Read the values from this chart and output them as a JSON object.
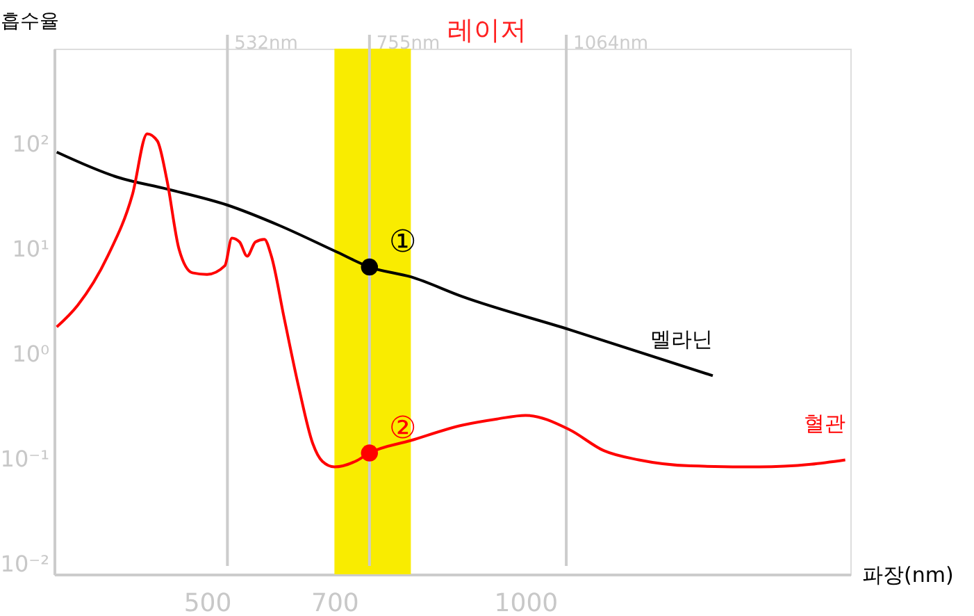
{
  "chart_data": {
    "type": "line",
    "title": "레이저",
    "xlabel": "파장(nm)",
    "ylabel": "흡수율",
    "xlim": [
      260,
      1510
    ],
    "xticks": [
      500,
      700,
      1000
    ],
    "ylim": [
      0.008,
      800
    ],
    "yticks": [
      {
        "value": 0.01,
        "label": "10⁻²"
      },
      {
        "value": 0.1,
        "label": "10⁻¹"
      },
      {
        "value": 1,
        "label": "10⁰"
      },
      {
        "value": 10,
        "label": "10¹"
      },
      {
        "value": 100,
        "label": "10²"
      }
    ],
    "log": "y",
    "grid": false,
    "legend": false,
    "series": [
      {
        "name": "멜라닌",
        "color": "#000000",
        "marker": "none",
        "x": [
          264,
          359,
          437,
          532,
          614,
          704,
          755,
          820,
          901,
          1069,
          1294
        ],
        "values": [
          83,
          48,
          37,
          26,
          16.6,
          9.3,
          6.7,
          5.4,
          3.5,
          1.7,
          0.62
        ]
      },
      {
        "name": "혈관",
        "color": "#ff0000",
        "marker": "none",
        "x": [
          264,
          297,
          344,
          383,
          406,
          422,
          437,
          456,
          477,
          500,
          528,
          539,
          551,
          563,
          576,
          590,
          601,
          621,
          644,
          666,
          681,
          700,
          733,
          755,
          820,
          901,
          955,
          1000,
          1069,
          1123,
          1178,
          1259,
          1367,
          1448,
          1502
        ],
        "values": [
          1.8,
          2.9,
          8.5,
          33,
          124,
          106,
          45,
          9.9,
          5.9,
          5.7,
          6.9,
          12.6,
          11.6,
          8.5,
          11.6,
          12.3,
          8.5,
          2.2,
          0.48,
          0.14,
          0.095,
          0.084,
          0.095,
          0.114,
          0.15,
          0.21,
          0.24,
          0.26,
          0.19,
          0.12,
          0.098,
          0.086,
          0.084,
          0.089,
          0.098
        ]
      },
      {
        "type": "scatter",
        "color": "#000000",
        "marker": "circle",
        "x": [
          755
        ],
        "values": [
          6.7
        ],
        "value_labels": [
          "①"
        ]
      },
      {
        "type": "scatter",
        "color": "#ff0000",
        "marker": "circle",
        "x": [
          755
        ],
        "values": [
          0.114
        ],
        "value_labels": [
          "②"
        ]
      }
    ],
    "ref_lines": [
      {
        "axis": "x",
        "value": 532,
        "label": "532nm",
        "color": "#cccccc"
      },
      {
        "axis": "x",
        "value": 755,
        "label": "755nm",
        "color": "#cccccc"
      },
      {
        "axis": "x",
        "value": 1064,
        "label": "1064nm",
        "color": "#cccccc"
      }
    ],
    "bands": [
      {
        "axis": "x",
        "from": 700,
        "to": 820,
        "color": "#f9ec00"
      }
    ]
  }
}
